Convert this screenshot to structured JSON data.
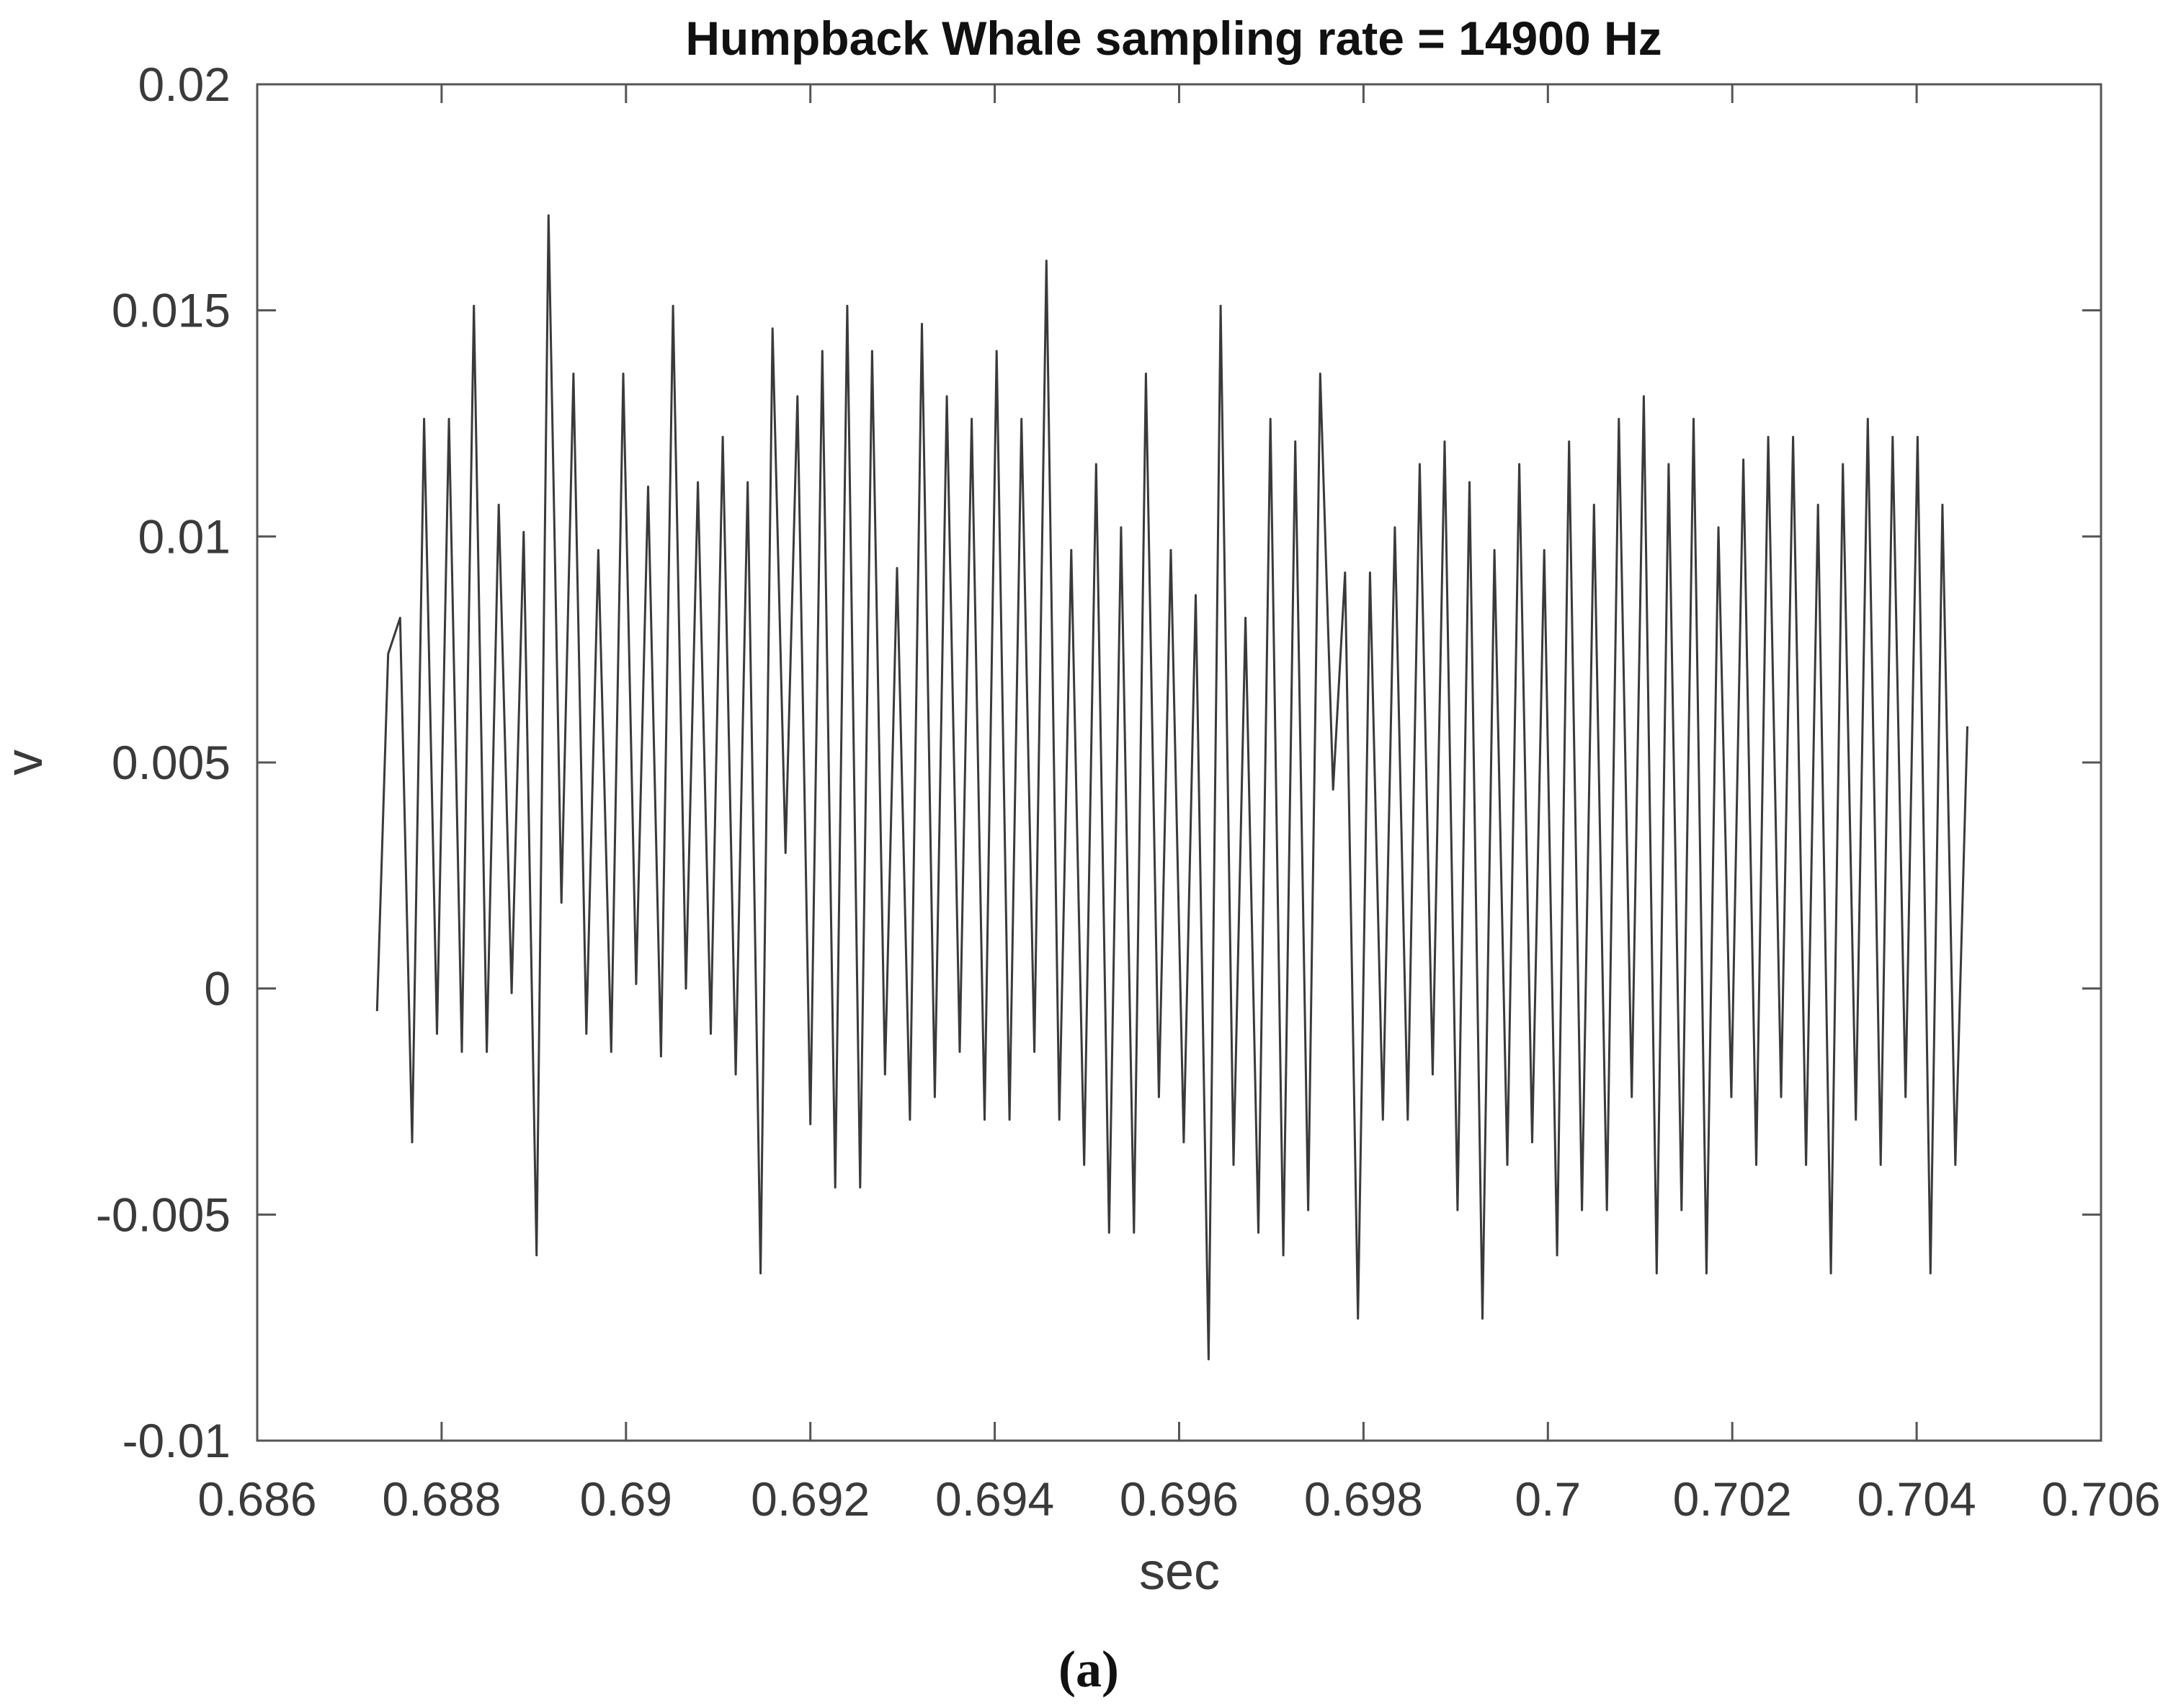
{
  "chart_data": {
    "type": "line",
    "title": "Humpback Whale sampling rate = 14900 Hz",
    "xlabel": "sec",
    "ylabel": "v",
    "xlim": [
      0.686,
      0.706
    ],
    "ylim": [
      -0.01,
      0.02
    ],
    "xticks": [
      "0.686",
      "0.688",
      "0.69",
      "0.692",
      "0.694",
      "0.696",
      "0.698",
      "0.7",
      "0.702",
      "0.704",
      "0.706"
    ],
    "yticks": [
      "-0.01",
      "-0.005",
      "0",
      "0.005",
      "0.01",
      "0.015",
      "0.02"
    ],
    "grid": false,
    "line_color": "#3a3a3a",
    "series": [
      {
        "x": [
          0.6873,
          0.68742,
          0.68755,
          0.68768,
          0.68781,
          0.68795,
          0.68808,
          0.68822,
          0.68835,
          0.68849,
          0.68862,
          0.68876,
          0.68889,
          0.68903,
          0.68916,
          0.6893,
          0.68943,
          0.68957,
          0.6897,
          0.68984,
          0.68997,
          0.69011,
          0.69024,
          0.69038,
          0.69051,
          0.69065,
          0.69078,
          0.69092,
          0.69105,
          0.69119,
          0.69132,
          0.69146,
          0.69159,
          0.69173,
          0.69186,
          0.692,
          0.69213,
          0.69227,
          0.6924,
          0.69254,
          0.69267,
          0.69281,
          0.69294,
          0.69308,
          0.69321,
          0.69335,
          0.69348,
          0.69362,
          0.69375,
          0.69389,
          0.69402,
          0.69416,
          0.69429,
          0.69443,
          0.69456,
          0.6947,
          0.69483,
          0.69497,
          0.6951,
          0.69524,
          0.69537,
          0.69551,
          0.69564,
          0.69578,
          0.69591,
          0.69605,
          0.69618,
          0.69632,
          0.69645,
          0.69659,
          0.69672,
          0.69686,
          0.69699,
          0.69713,
          0.69726,
          0.6974,
          0.69753,
          0.69767,
          0.6978,
          0.69794,
          0.69807,
          0.69821,
          0.69834,
          0.69848,
          0.69861,
          0.69875,
          0.69888,
          0.69902,
          0.69915,
          0.69929,
          0.69942,
          0.69956,
          0.69969,
          0.69983,
          0.69996,
          0.7001,
          0.70023,
          0.70037,
          0.7005,
          0.70064,
          0.70077,
          0.70091,
          0.70104,
          0.70118,
          0.70131,
          0.70145,
          0.70158,
          0.70172,
          0.70185,
          0.70199,
          0.70212,
          0.70226,
          0.70239,
          0.70253,
          0.70266,
          0.7028,
          0.70293,
          0.70307,
          0.7032,
          0.70334,
          0.70347,
          0.70361,
          0.70374,
          0.70388,
          0.70401,
          0.70415,
          0.70428,
          0.70442,
          0.70455
        ],
        "y": [
          -0.0005,
          0.0074,
          0.0082,
          -0.0034,
          0.0126,
          -0.001,
          0.0126,
          -0.0014,
          0.0151,
          -0.0014,
          0.0107,
          -0.0001,
          0.0101,
          -0.0059,
          0.0171,
          0.0019,
          0.0136,
          -0.001,
          0.0097,
          -0.0014,
          0.0136,
          0.0001,
          0.0111,
          -0.0015,
          0.0151,
          0.0,
          0.0112,
          -0.001,
          0.0122,
          -0.0019,
          0.0112,
          -0.0063,
          0.0146,
          0.003,
          0.0131,
          -0.003,
          0.0141,
          -0.0044,
          0.0151,
          -0.0044,
          0.0141,
          -0.0019,
          0.0093,
          -0.0029,
          0.0147,
          -0.0024,
          0.0131,
          -0.0014,
          0.0126,
          -0.0029,
          0.0141,
          -0.0029,
          0.0126,
          -0.0014,
          0.0161,
          -0.0029,
          0.0097,
          -0.0039,
          0.0116,
          -0.0054,
          0.0102,
          -0.0054,
          0.0136,
          -0.0024,
          0.0097,
          -0.0034,
          0.0087,
          -0.0082,
          0.0151,
          -0.0039,
          0.0082,
          -0.0054,
          0.0126,
          -0.0059,
          0.0121,
          -0.0049,
          0.0136,
          0.0044,
          0.0092,
          -0.0073,
          0.0092,
          -0.0029,
          0.0102,
          -0.0029,
          0.0116,
          -0.0019,
          0.0121,
          -0.0049,
          0.0112,
          -0.0073,
          0.0097,
          -0.0039,
          0.0116,
          -0.0034,
          0.0097,
          -0.0059,
          0.0121,
          -0.0049,
          0.0107,
          -0.0049,
          0.0126,
          -0.0024,
          0.0131,
          -0.0063,
          0.0116,
          -0.0049,
          0.0126,
          -0.0063,
          0.0102,
          -0.0024,
          0.0117,
          -0.0039,
          0.0122,
          -0.0024,
          0.0122,
          -0.0039,
          0.0107,
          -0.0063,
          0.0116,
          -0.0029,
          0.0126,
          -0.0039,
          0.0122,
          -0.0024,
          0.0122,
          -0.0063,
          0.0107,
          -0.0039,
          0.0058
        ]
      }
    ]
  },
  "caption": "(a)"
}
